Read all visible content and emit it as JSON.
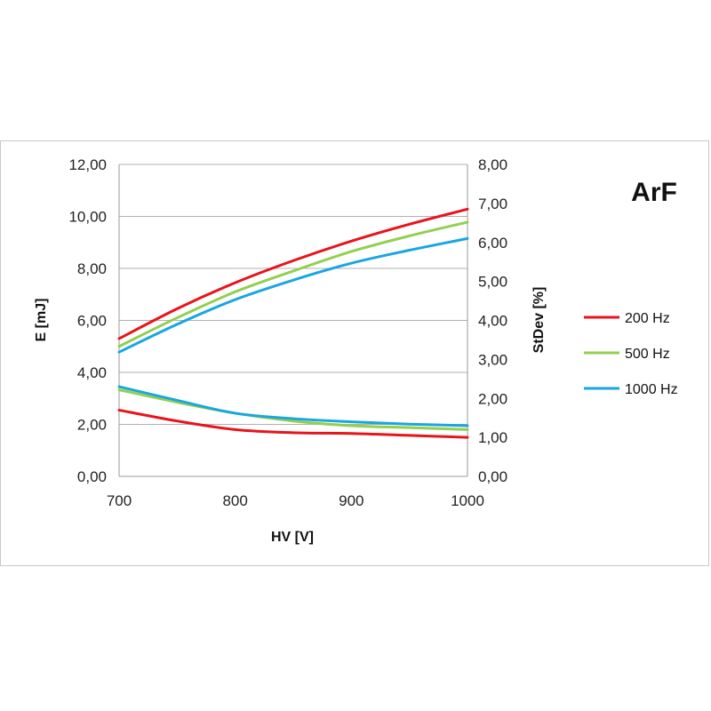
{
  "chart_data": {
    "type": "line",
    "title": "ArF",
    "xlabel": "HV [V]",
    "ylabel": "E [mJ]",
    "y2label": "StDev [%]",
    "xlim": [
      700,
      1000
    ],
    "ylim": [
      0,
      12
    ],
    "y2lim": [
      0,
      8
    ],
    "xticks": [
      "700",
      "800",
      "900",
      "1000"
    ],
    "yticks": [
      "0,00",
      "2,00",
      "4,00",
      "6,00",
      "8,00",
      "10,00",
      "12,00"
    ],
    "y2ticks": [
      "0,00",
      "1,00",
      "2,00",
      "3,00",
      "4,00",
      "5,00",
      "6,00",
      "7,00",
      "8,00"
    ],
    "grid": "horizontal",
    "legend_position": "right",
    "x": [
      700,
      750,
      800,
      850,
      900,
      950,
      1000
    ],
    "series": [
      {
        "name": "200 Hz",
        "axis": "left",
        "group": "E",
        "color": "#e8141c",
        "values": [
          5.3,
          6.45,
          7.45,
          8.3,
          9.05,
          9.7,
          10.28
        ]
      },
      {
        "name": "500 Hz",
        "axis": "left",
        "group": "E",
        "color": "#92d050",
        "values": [
          5.0,
          6.1,
          7.1,
          7.9,
          8.65,
          9.25,
          9.78
        ]
      },
      {
        "name": "1000 Hz",
        "axis": "left",
        "group": "E",
        "color": "#1aa6e0",
        "values": [
          4.78,
          5.85,
          6.8,
          7.55,
          8.2,
          8.7,
          9.15
        ]
      },
      {
        "name": "200 Hz",
        "axis": "right",
        "group": "StDev",
        "color": "#e8141c",
        "values": [
          1.7,
          1.42,
          1.2,
          1.12,
          1.1,
          1.05,
          1.0
        ]
      },
      {
        "name": "500 Hz",
        "axis": "right",
        "group": "StDev",
        "color": "#92d050",
        "values": [
          2.22,
          1.9,
          1.62,
          1.42,
          1.3,
          1.25,
          1.2
        ]
      },
      {
        "name": "1000 Hz",
        "axis": "right",
        "group": "StDev",
        "color": "#1aa6e0",
        "values": [
          2.3,
          1.95,
          1.62,
          1.48,
          1.4,
          1.34,
          1.3
        ]
      }
    ],
    "legend": [
      {
        "label": "200 Hz",
        "color": "#e8141c"
      },
      {
        "label": "500 Hz",
        "color": "#92d050"
      },
      {
        "label": "1000 Hz",
        "color": "#1aa6e0"
      }
    ]
  }
}
